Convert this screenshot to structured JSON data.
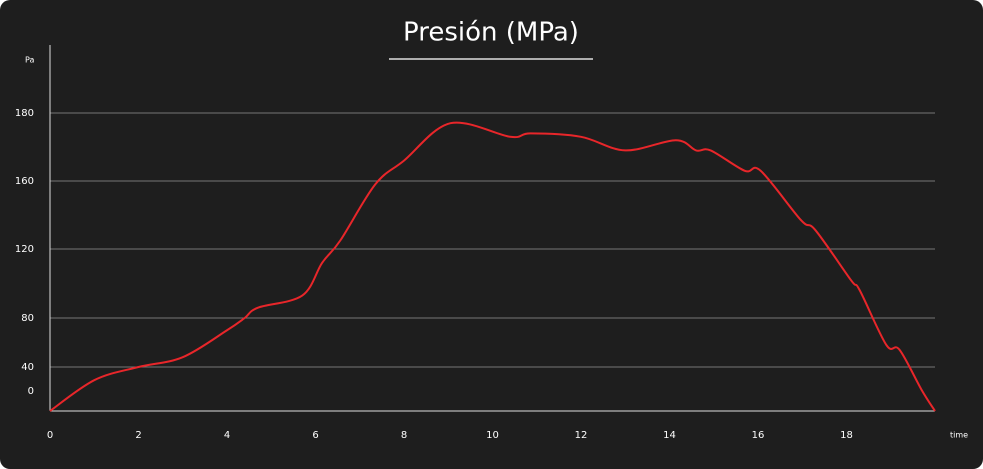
{
  "chart_data": {
    "type": "line",
    "title": "Presión (MPa)",
    "y_label": "Pa",
    "x_label": "time",
    "x": [
      0,
      1,
      2,
      3,
      4,
      4.4,
      4.7,
      5.7,
      6.15,
      6.56,
      7.35,
      8,
      9.05,
      10.4,
      10.86,
      12,
      13,
      14.14,
      14.6,
      14.93,
      15.7,
      16.06,
      16.97,
      17.3,
      18.1,
      18.3,
      18.9,
      19.2,
      19.7,
      20
    ],
    "series": [
      {
        "name": "Presión",
        "color": "#e8262a",
        "values": [
          0,
          28,
          40,
          48,
          70,
          80,
          86,
          93,
          112,
          125,
          158,
          166,
          177,
          173,
          174,
          173,
          169,
          172,
          169,
          169,
          163,
          163,
          137,
          131,
          102,
          96,
          58,
          54,
          19,
          0
        ]
      }
    ],
    "xlim": [
      0,
      20
    ],
    "xticks": [
      0,
      2,
      4,
      6,
      8,
      10,
      12,
      14,
      16,
      18
    ],
    "ylim": [
      0,
      200
    ],
    "yticks": [
      0,
      40,
      80,
      120,
      160,
      180
    ],
    "grid": true
  }
}
